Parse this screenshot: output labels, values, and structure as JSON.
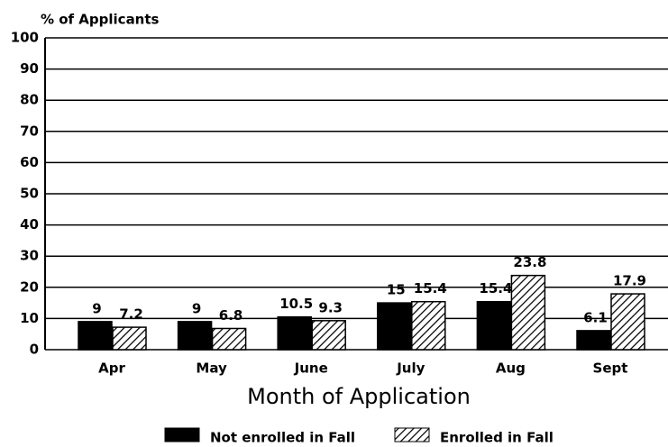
{
  "chart_data": {
    "type": "bar",
    "ylabel": "% of Applicants",
    "xlabel": "Month of Application",
    "categories": [
      "Apr",
      "May",
      "June",
      "July",
      "Aug",
      "Sept"
    ],
    "series": [
      {
        "name": "Not enrolled in Fall",
        "color": "#000000",
        "hatch": false,
        "values": [
          9,
          9,
          10.5,
          15,
          15.4,
          6.1
        ]
      },
      {
        "name": "Enrolled in Fall",
        "color": "#ffffff",
        "hatch": true,
        "values": [
          7.2,
          6.8,
          9.3,
          15.4,
          23.8,
          17.9
        ]
      }
    ],
    "ylim": [
      0,
      100
    ],
    "yticks": [
      0,
      10,
      20,
      30,
      40,
      50,
      60,
      70,
      80,
      90,
      100
    ],
    "grid": true
  }
}
